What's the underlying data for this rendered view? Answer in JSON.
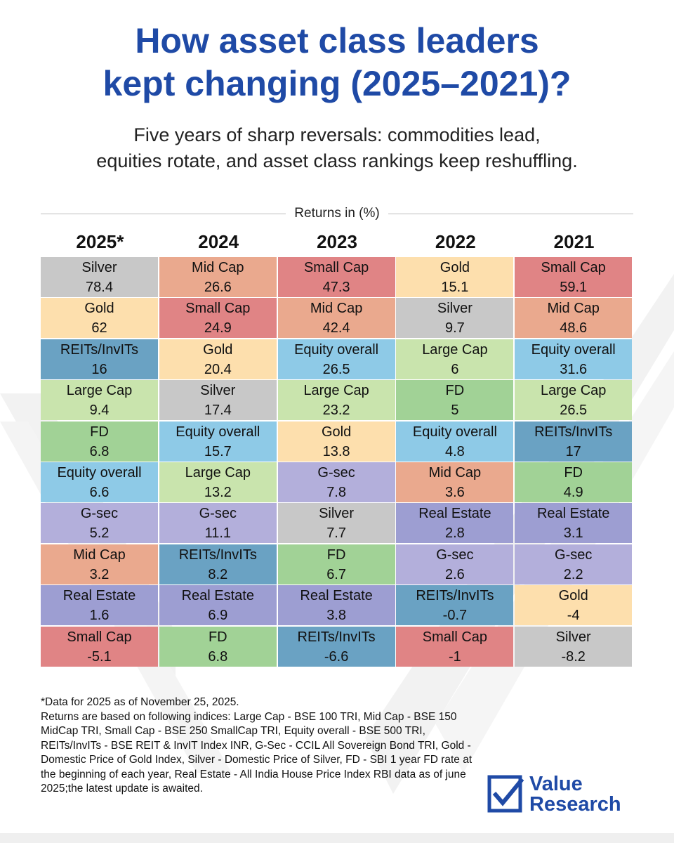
{
  "title_line1": "How asset class leaders",
  "title_line2": "kept changing (2025–2021)?",
  "subtitle_line1": "Five years of sharp reversals: commodities lead,",
  "subtitle_line2": "equities rotate, and asset class rankings keep reshuffling.",
  "returns_label": "Returns in (%)",
  "colors": {
    "title": "#1f4aa6",
    "Silver": "#c8c8c8",
    "Gold": "#fddfad",
    "REITs/InvITs": "#6aa2c3",
    "Large Cap": "#c9e4ad",
    "FD": "#a1d296",
    "Equity overall": "#8ecae7",
    "G-sec": "#b3afdb",
    "Mid Cap": "#eaa98e",
    "Real Estate": "#9d9ed2",
    "Small Cap": "#e08485"
  },
  "chart_data": {
    "type": "table",
    "columns": [
      "2025*",
      "2024",
      "2023",
      "2022",
      "2021"
    ],
    "ranks": [
      [
        {
          "asset": "Silver",
          "value": "78.4"
        },
        {
          "asset": "Gold",
          "value": "62"
        },
        {
          "asset": "REITs/InvITs",
          "value": "16"
        },
        {
          "asset": "Large Cap",
          "value": "9.4"
        },
        {
          "asset": "FD",
          "value": "6.8"
        },
        {
          "asset": "Equity overall",
          "value": "6.6"
        },
        {
          "asset": "G-sec",
          "value": "5.2"
        },
        {
          "asset": "Mid Cap",
          "value": "3.2"
        },
        {
          "asset": "Real Estate",
          "value": "1.6"
        },
        {
          "asset": "Small Cap",
          "value": "-5.1"
        }
      ],
      [
        {
          "asset": "Mid Cap",
          "value": "26.6"
        },
        {
          "asset": "Small Cap",
          "value": "24.9"
        },
        {
          "asset": "Gold",
          "value": "20.4"
        },
        {
          "asset": "Silver",
          "value": "17.4"
        },
        {
          "asset": "Equity overall",
          "value": "15.7"
        },
        {
          "asset": "Large Cap",
          "value": "13.2"
        },
        {
          "asset": "G-sec",
          "value": "11.1"
        },
        {
          "asset": "REITs/InvITs",
          "value": "8.2"
        },
        {
          "asset": "Real Estate",
          "value": "6.9"
        },
        {
          "asset": "FD",
          "value": "6.8"
        }
      ],
      [
        {
          "asset": "Small Cap",
          "value": "47.3"
        },
        {
          "asset": "Mid Cap",
          "value": "42.4"
        },
        {
          "asset": "Equity overall",
          "value": "26.5"
        },
        {
          "asset": "Large Cap",
          "value": "23.2"
        },
        {
          "asset": "Gold",
          "value": "13.8"
        },
        {
          "asset": "G-sec",
          "value": "7.8"
        },
        {
          "asset": "Silver",
          "value": "7.7"
        },
        {
          "asset": "FD",
          "value": "6.7"
        },
        {
          "asset": "Real Estate",
          "value": "3.8"
        },
        {
          "asset": "REITs/InvITs",
          "value": "-6.6"
        }
      ],
      [
        {
          "asset": "Gold",
          "value": "15.1"
        },
        {
          "asset": "Silver",
          "value": "9.7"
        },
        {
          "asset": "Large Cap",
          "value": "6"
        },
        {
          "asset": "FD",
          "value": "5"
        },
        {
          "asset": "Equity overall",
          "value": "4.8"
        },
        {
          "asset": "Mid Cap",
          "value": "3.6"
        },
        {
          "asset": "Real Estate",
          "value": "2.8"
        },
        {
          "asset": "G-sec",
          "value": "2.6"
        },
        {
          "asset": "REITs/InvITs",
          "value": "-0.7"
        },
        {
          "asset": "Small Cap",
          "value": "-1"
        }
      ],
      [
        {
          "asset": "Small Cap",
          "value": "59.1"
        },
        {
          "asset": "Mid Cap",
          "value": "48.6"
        },
        {
          "asset": "Equity overall",
          "value": "31.6"
        },
        {
          "asset": "Large Cap",
          "value": "26.5"
        },
        {
          "asset": "REITs/InvITs",
          "value": "17"
        },
        {
          "asset": "FD",
          "value": "4.9"
        },
        {
          "asset": "Real Estate",
          "value": "3.1"
        },
        {
          "asset": "G-sec",
          "value": "2.2"
        },
        {
          "asset": "Gold",
          "value": "-4"
        },
        {
          "asset": "Silver",
          "value": "-8.2"
        }
      ]
    ]
  },
  "footnote_line1": "*Data for 2025 as of November 25, 2025.",
  "footnote_line2": "Returns are based on following indices: Large Cap - BSE 100 TRI, Mid Cap - BSE 150 MidCap TRI, Small Cap - BSE 250 SmallCap TRI, Equity overall - BSE 500 TRI, REITs/InvITs - BSE REIT & InvIT Index INR, G-Sec - CCIL All Sovereign Bond TRI, Gold - Domestic Price of Gold Index, Silver - Domestic Price of Silver, FD - SBI 1 year FD rate at the beginning of each year, Real Estate - All India House Price Index RBI data as of june 2025;the latest update is awaited.",
  "logo": {
    "line1": "Value",
    "line2": "Research",
    "icon": "checkbox-check-icon"
  }
}
